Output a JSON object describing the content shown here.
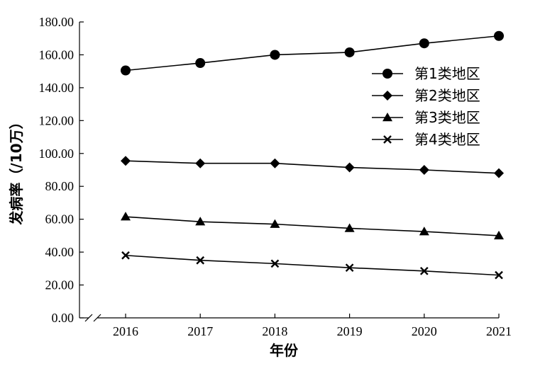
{
  "chart_data": {
    "type": "line",
    "xlabel": "年份",
    "ylabel": "发病率（/10万）",
    "ylim": [
      0,
      180
    ],
    "yticks": [
      "0.00",
      "20.00",
      "40.00",
      "60.00",
      "80.00",
      "100.00",
      "120.00",
      "140.00",
      "160.00",
      "180.00"
    ],
    "categories": [
      "2016",
      "2017",
      "2018",
      "2019",
      "2020",
      "2021"
    ],
    "axis_break": true,
    "grid": false,
    "legend_position": "upper-right",
    "series": [
      {
        "name": "第1类地区",
        "marker": "circle",
        "values": [
          150.5,
          155.0,
          160.0,
          161.5,
          167.0,
          171.5
        ]
      },
      {
        "name": "第2类地区",
        "marker": "diamond",
        "values": [
          95.5,
          94.0,
          94.0,
          91.5,
          90.0,
          88.0
        ]
      },
      {
        "name": "第3类地区",
        "marker": "triangle",
        "values": [
          61.5,
          58.5,
          57.0,
          54.5,
          52.5,
          50.0
        ]
      },
      {
        "name": "第4类地区",
        "marker": "x",
        "values": [
          38.0,
          35.0,
          33.0,
          30.5,
          28.5,
          26.0
        ]
      }
    ],
    "colors": {
      "line": "#000000",
      "marker": "#000000"
    }
  }
}
